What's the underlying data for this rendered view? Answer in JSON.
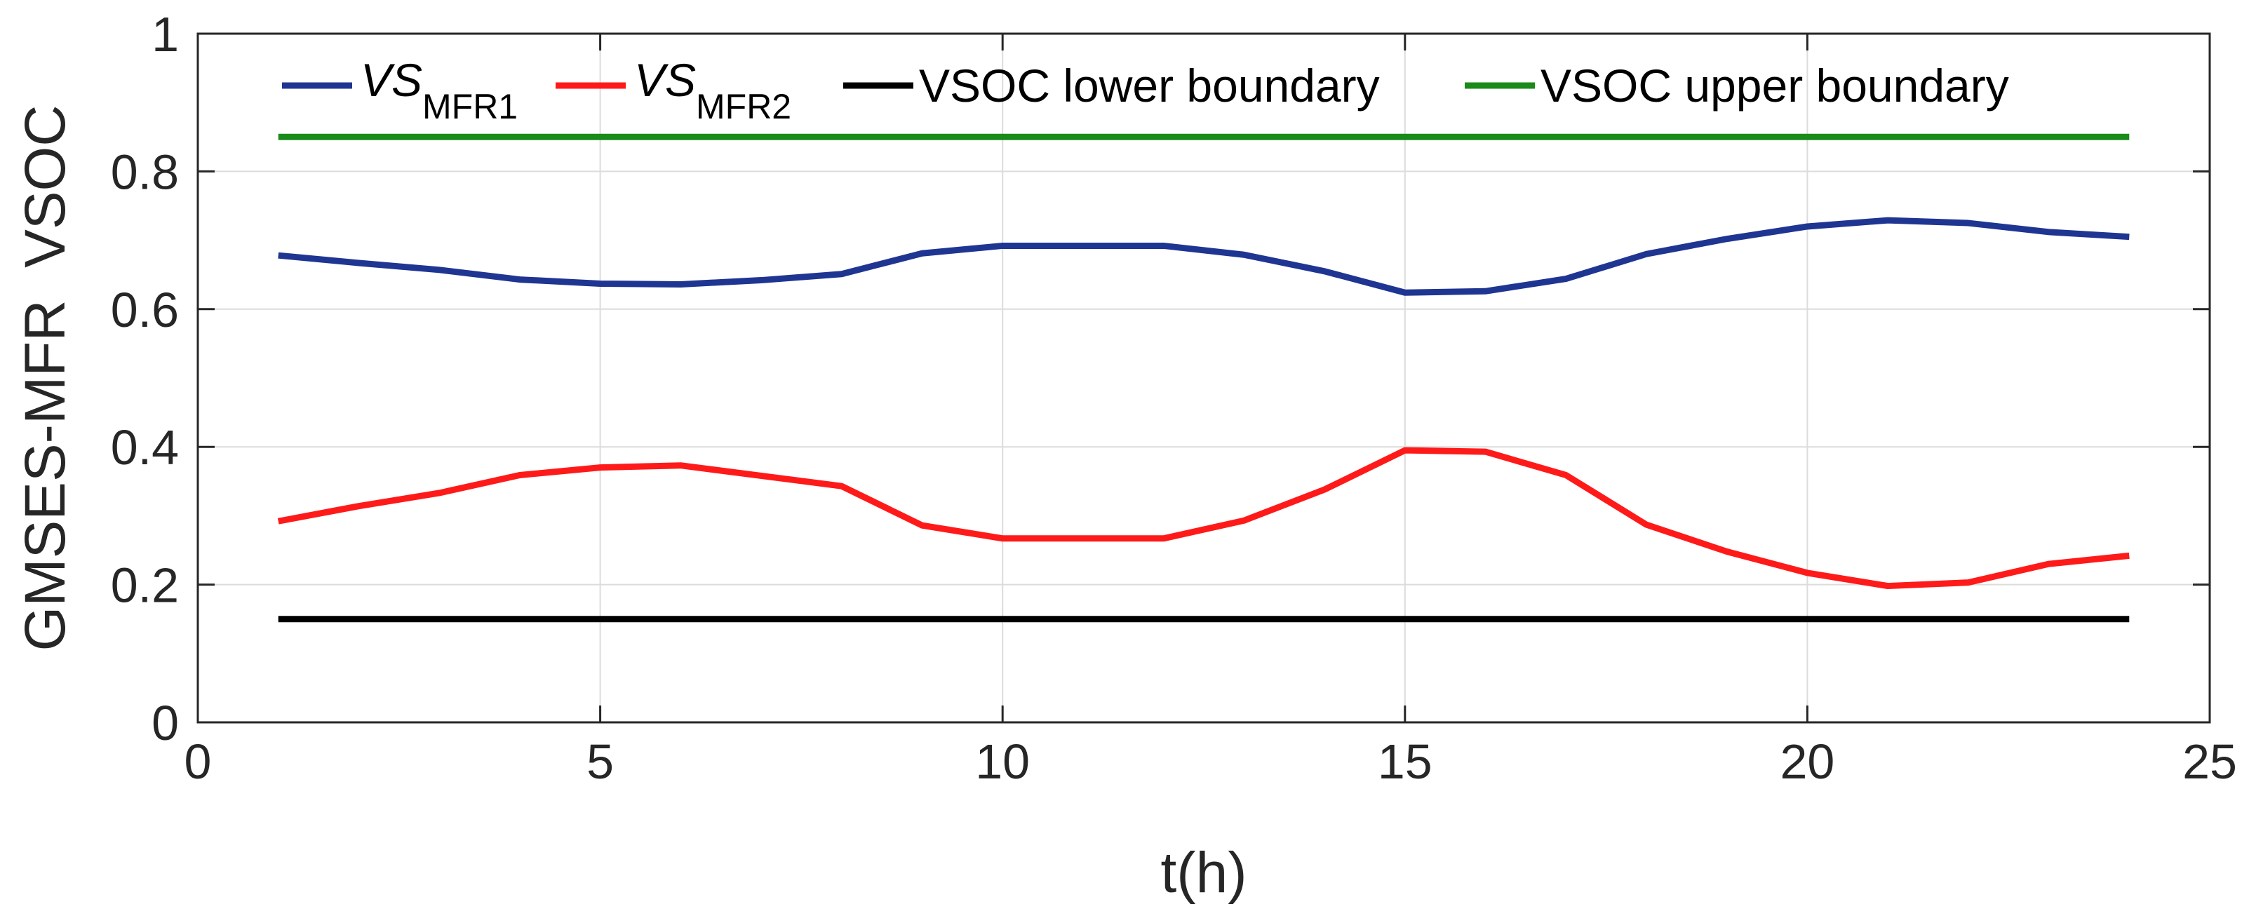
{
  "chart_data": {
    "type": "line",
    "title": "",
    "xlabel": "t(h)",
    "ylabel": "GMSES-MFR  VSOC",
    "xlim": [
      0,
      25
    ],
    "ylim": [
      0,
      1
    ],
    "xticks": [
      0,
      5,
      10,
      15,
      20,
      25
    ],
    "xtick_labels": [
      "0",
      "5",
      "10",
      "15",
      "20",
      "25"
    ],
    "yticks": [
      0,
      0.2,
      0.4,
      0.6,
      0.8,
      1
    ],
    "ytick_labels": [
      "0",
      "0.2",
      "0.4",
      "0.6",
      "0.8",
      "1"
    ],
    "grid": true,
    "legend_position": "top",
    "x": [
      1,
      2,
      3,
      4,
      5,
      6,
      7,
      8,
      9,
      10,
      11,
      12,
      13,
      14,
      15,
      16,
      17,
      18,
      19,
      20,
      21,
      22,
      23,
      24
    ],
    "series": [
      {
        "name": "VS_MFR1",
        "legend_main": "VS",
        "legend_sub": "MFR1",
        "color": "#1f3592",
        "values": [
          0.678,
          0.667,
          0.657,
          0.643,
          0.637,
          0.636,
          0.642,
          0.651,
          0.681,
          0.692,
          0.692,
          0.692,
          0.679,
          0.655,
          0.624,
          0.626,
          0.644,
          0.68,
          0.702,
          0.72,
          0.729,
          0.725,
          0.712,
          0.705
        ]
      },
      {
        "name": "VS_MFR2",
        "legend_main": "VS",
        "legend_sub": "MFR2",
        "color": "#ff1a1a",
        "values": [
          0.292,
          0.314,
          0.333,
          0.359,
          0.37,
          0.373,
          0.358,
          0.343,
          0.286,
          0.267,
          0.267,
          0.267,
          0.293,
          0.338,
          0.395,
          0.393,
          0.359,
          0.287,
          0.248,
          0.217,
          0.198,
          0.203,
          0.23,
          0.242
        ]
      },
      {
        "name": "VSOC lower boundary",
        "color": "#000000",
        "values": [
          0.15,
          0.15,
          0.15,
          0.15,
          0.15,
          0.15,
          0.15,
          0.15,
          0.15,
          0.15,
          0.15,
          0.15,
          0.15,
          0.15,
          0.15,
          0.15,
          0.15,
          0.15,
          0.15,
          0.15,
          0.15,
          0.15,
          0.15,
          0.15
        ]
      },
      {
        "name": "VSOC upper boundary",
        "color": "#1a8a1a",
        "values": [
          0.85,
          0.85,
          0.85,
          0.85,
          0.85,
          0.85,
          0.85,
          0.85,
          0.85,
          0.85,
          0.85,
          0.85,
          0.85,
          0.85,
          0.85,
          0.85,
          0.85,
          0.85,
          0.85,
          0.85,
          0.85,
          0.85,
          0.85,
          0.85
        ]
      }
    ]
  }
}
